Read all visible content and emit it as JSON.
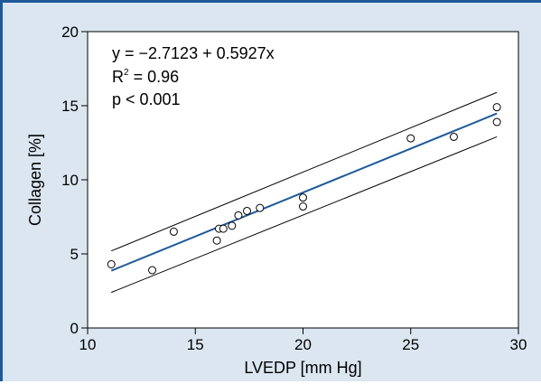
{
  "chart_data": {
    "type": "scatter",
    "xlabel": "LVEDP [mm Hg]",
    "ylabel": "Collagen [%]",
    "xlim": [
      10,
      30
    ],
    "ylim": [
      0,
      20
    ],
    "x_ticks": [
      10,
      15,
      20,
      25,
      30
    ],
    "y_ticks": [
      0,
      5,
      10,
      15,
      20
    ],
    "grid": false,
    "points": [
      {
        "x": 11.1,
        "y": 4.3
      },
      {
        "x": 13.0,
        "y": 3.9
      },
      {
        "x": 14.0,
        "y": 6.5
      },
      {
        "x": 16.0,
        "y": 5.9
      },
      {
        "x": 16.1,
        "y": 6.7
      },
      {
        "x": 16.3,
        "y": 6.7
      },
      {
        "x": 16.7,
        "y": 6.9
      },
      {
        "x": 17.0,
        "y": 7.6
      },
      {
        "x": 17.4,
        "y": 7.9
      },
      {
        "x": 18.0,
        "y": 8.1
      },
      {
        "x": 20.0,
        "y": 8.8
      },
      {
        "x": 20.0,
        "y": 8.2
      },
      {
        "x": 25.0,
        "y": 12.8
      },
      {
        "x": 27.0,
        "y": 12.9
      },
      {
        "x": 29.0,
        "y": 14.9
      },
      {
        "x": 29.0,
        "y": 13.9
      }
    ],
    "regression": {
      "intercept": -2.7123,
      "slope": 0.5927,
      "x_range": [
        11.1,
        29.0
      ],
      "color": "#1e5a99"
    },
    "confidence_band": {
      "upper": [
        [
          11.1,
          5.2
        ],
        [
          29.0,
          15.9
        ]
      ],
      "lower": [
        [
          11.1,
          2.4
        ],
        [
          29.0,
          12.9
        ]
      ]
    },
    "annotations": {
      "equation": "y = −2.7123 + 0.5927x",
      "r2_label": "R",
      "r2_sup": "2",
      "r2_value": " = 0.96",
      "p_value": "p < 0.001"
    }
  },
  "colors": {
    "frame_border": "#1e5a99",
    "background": "#dbe6f1",
    "plot_area": "#ffffff",
    "fit_line": "#1e5a99"
  }
}
